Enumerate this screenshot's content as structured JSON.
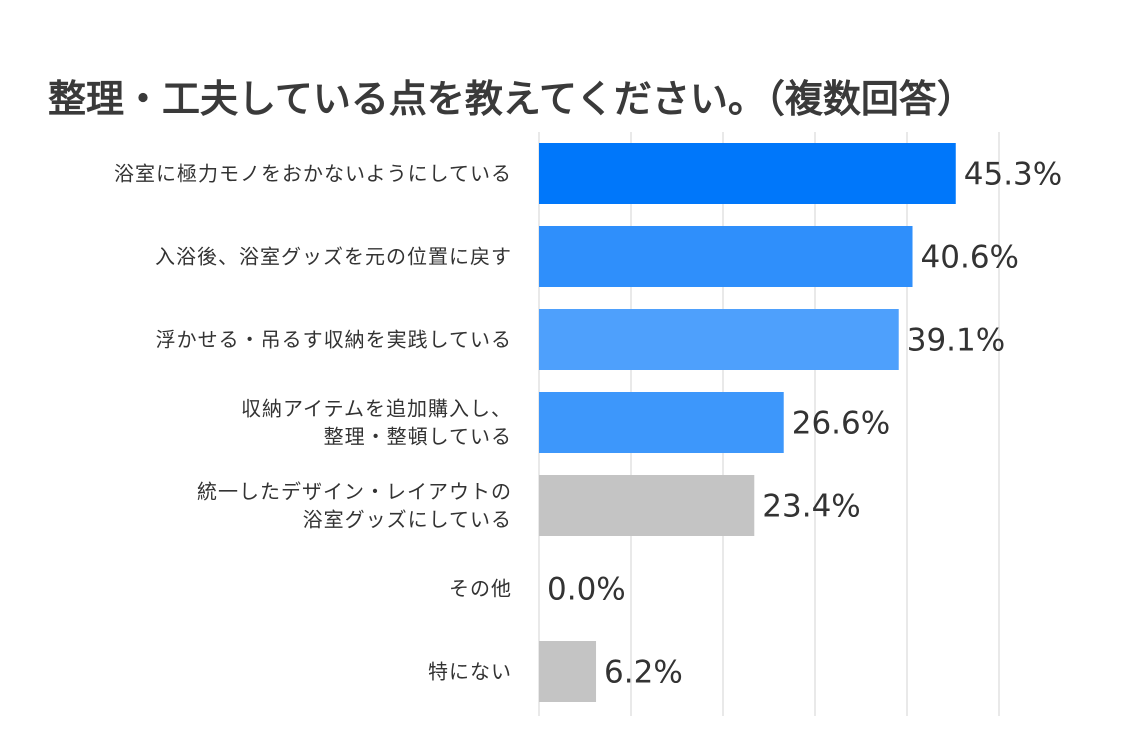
{
  "chart_data": {
    "type": "bar",
    "orientation": "horizontal",
    "title": "整理・工夫している点を教えてください。（複数回答）",
    "categories": [
      [
        "浴室に極力モノをおかないようにしている"
      ],
      [
        "入浴後、浴室グッズを元の位置に戻す"
      ],
      [
        "浮かせる・吊るす収納を実践している"
      ],
      [
        "収納アイテムを追加購入し、",
        "整理・整頓している"
      ],
      [
        "統一したデザイン・レイアウトの",
        "浴室グッズにしている"
      ],
      [
        "その他"
      ],
      [
        "特にない"
      ]
    ],
    "values": [
      45.3,
      40.6,
      39.1,
      26.6,
      23.4,
      0.0,
      6.2
    ],
    "value_labels": [
      "45.3%",
      "40.6%",
      "39.1%",
      "26.6%",
      "23.4%",
      "0.0%",
      "6.2%"
    ],
    "bar_colors": [
      "#0077fa",
      "#2f8ffb",
      "#4ea0fc",
      "#3d97fb",
      "#c4c4c4",
      "#c4c4c4",
      "#c4c4c4"
    ],
    "xlim": [
      0,
      50
    ],
    "grid": true,
    "legend": "none",
    "colors": {
      "title": "#3a3a3a",
      "text": "#333333",
      "grid": "#e2e2e2"
    }
  }
}
